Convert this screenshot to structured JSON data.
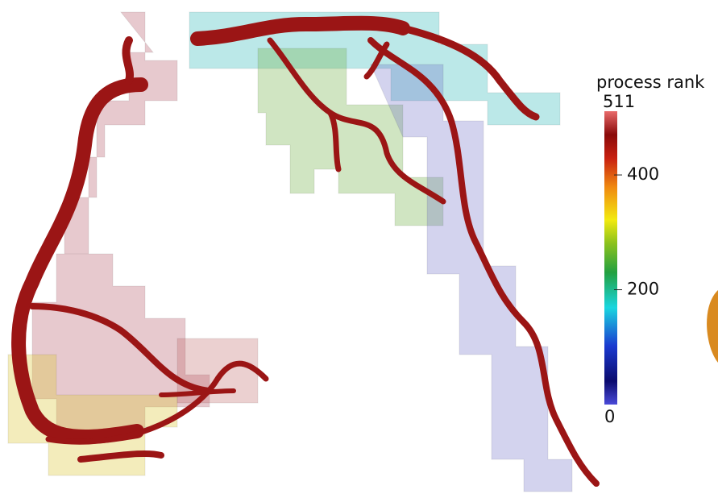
{
  "colorbar": {
    "title": "process rank",
    "range": [
      0,
      511
    ],
    "ticks": [
      0,
      200,
      400,
      511
    ]
  }
}
